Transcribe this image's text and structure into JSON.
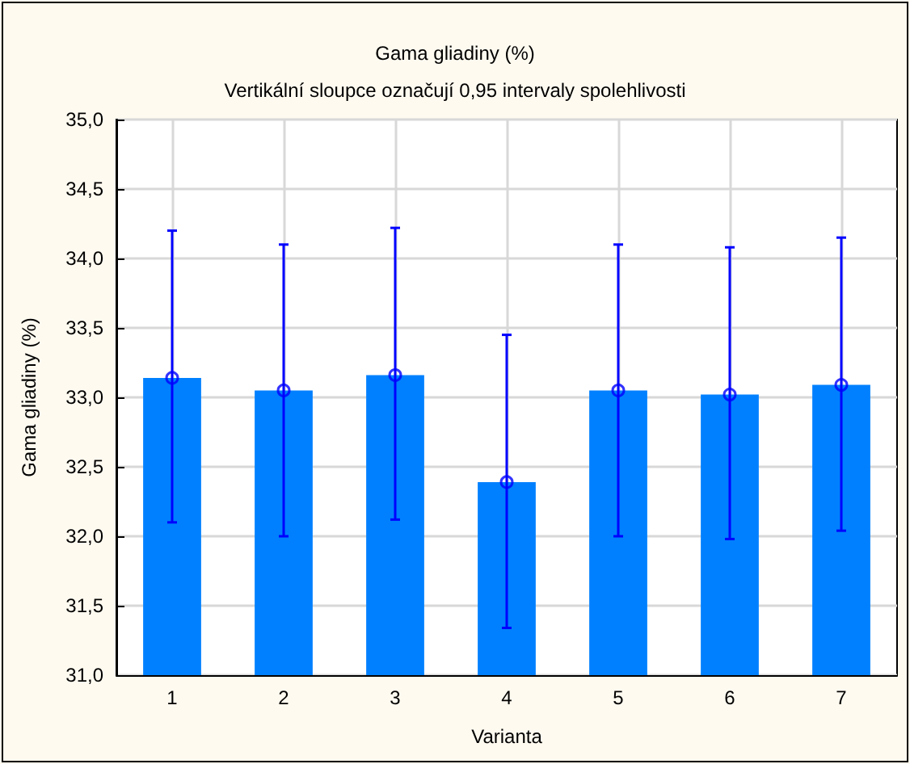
{
  "chart_data": {
    "type": "bar",
    "title": "Gama gliadiny (%)",
    "subtitle": "Vertikální sloupce označují 0,95 intervaly spolehlivosti",
    "xlabel": "Varianta",
    "ylabel": "Gama gliadiny (%)",
    "categories": [
      "1",
      "2",
      "3",
      "4",
      "5",
      "6",
      "7"
    ],
    "series": [
      {
        "color": "#0080ff",
        "values": [
          33.14,
          33.05,
          33.16,
          32.39,
          33.05,
          33.02,
          33.09
        ]
      },
      {
        "type": "scatter",
        "color": "#0000ff",
        "x": [
          "1",
          "2",
          "3",
          "4",
          "5",
          "6",
          "7"
        ],
        "values": [
          33.14,
          33.05,
          33.16,
          32.39,
          33.05,
          33.02,
          33.09
        ],
        "errors": [
          [
            32.1,
            34.2
          ],
          [
            32.0,
            34.1
          ],
          [
            32.12,
            34.22
          ],
          [
            31.34,
            33.45
          ],
          [
            32.0,
            34.1
          ],
          [
            31.98,
            34.08
          ],
          [
            32.04,
            34.15
          ]
        ]
      }
    ],
    "ylim": [
      31,
      35
    ],
    "yticks": [
      {
        "value": 31,
        "label": "31,0"
      },
      {
        "value": 31.5,
        "label": "31,5"
      },
      {
        "value": 32,
        "label": "32,0"
      },
      {
        "value": 32.5,
        "label": "32,5"
      },
      {
        "value": 33,
        "label": "33,0"
      },
      {
        "value": 33.5,
        "label": "33,5"
      },
      {
        "value": 34,
        "label": "34,0"
      },
      {
        "value": 34.5,
        "label": "34,5"
      },
      {
        "value": 35,
        "label": "35,0"
      }
    ],
    "grid": true,
    "marker": "circle"
  }
}
